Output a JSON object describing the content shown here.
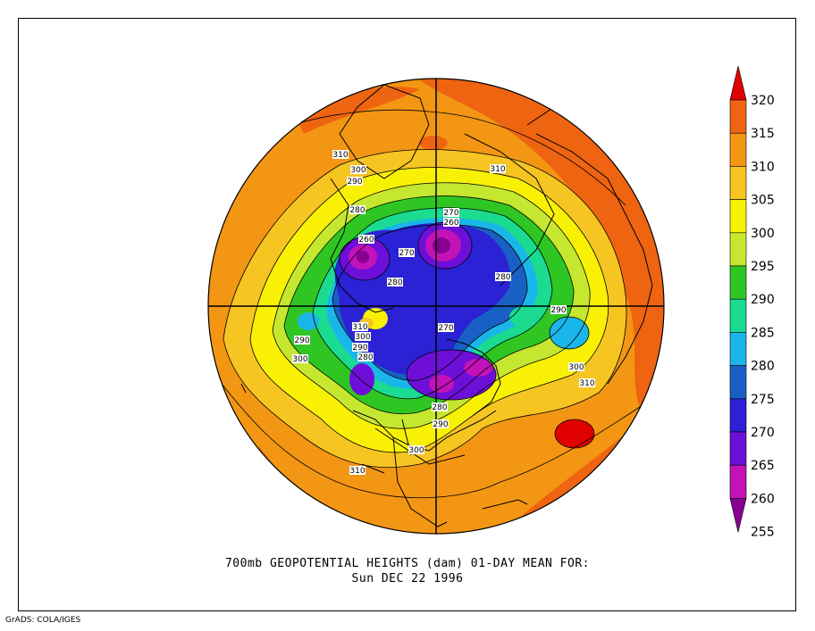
{
  "title_line1": "700mb GEOPOTENTIAL HEIGHTS (dam)   01-DAY MEAN FOR:",
  "title_line2": "Sun DEC 22 1996",
  "credit": "GrADS: COLA/IGES",
  "colorbar": {
    "levels": [
      "320",
      "315",
      "310",
      "305",
      "300",
      "295",
      "290",
      "285",
      "280",
      "275",
      "270",
      "265",
      "260",
      "255"
    ],
    "colors": [
      "#e00000",
      "#ee6411",
      "#f39613",
      "#f6c521",
      "#f9f105",
      "#c6e72f",
      "#2fc624",
      "#1adb8f",
      "#1ab6e9",
      "#1960c4",
      "#2a22d4",
      "#6d0fd8",
      "#c312b8",
      "#870091"
    ]
  },
  "contour_labels": [
    {
      "text": "310"
    },
    {
      "text": "300"
    },
    {
      "text": "290"
    },
    {
      "text": "280"
    },
    {
      "text": "260"
    },
    {
      "text": "270"
    },
    {
      "text": "260"
    },
    {
      "text": "270"
    },
    {
      "text": "280"
    },
    {
      "text": "280"
    },
    {
      "text": "310"
    },
    {
      "text": "300"
    },
    {
      "text": "290"
    },
    {
      "text": "280"
    },
    {
      "text": "290"
    },
    {
      "text": "300"
    },
    {
      "text": "270"
    },
    {
      "text": "290"
    },
    {
      "text": "300"
    },
    {
      "text": "310"
    },
    {
      "text": "280"
    },
    {
      "text": "290"
    },
    {
      "text": "300"
    },
    {
      "text": "310"
    },
    {
      "text": "310"
    }
  ]
}
